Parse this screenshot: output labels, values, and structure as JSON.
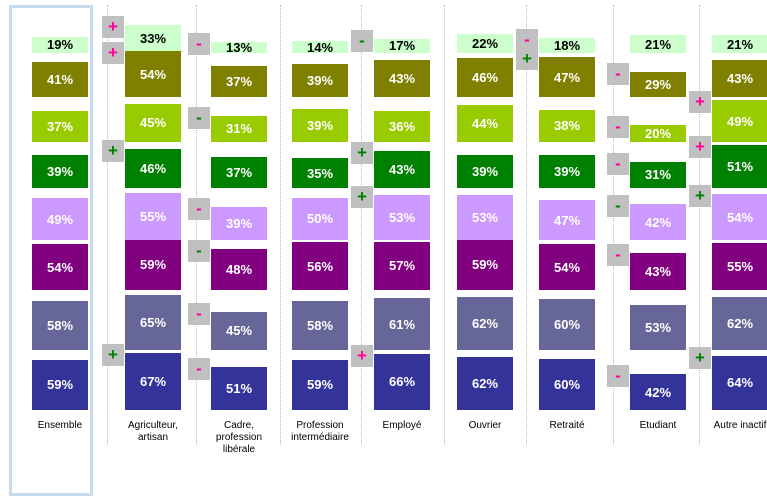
{
  "chart_data": {
    "type": "square-grid",
    "categories": [
      "Ensemble",
      "Agriculteur,\nartisan",
      "Cadre,\nprofession\nlibérale",
      "Profession\nintermédiaire",
      "Employé",
      "Ouvrier",
      "Retraité",
      "Etudiant",
      "Autre inactif"
    ],
    "highlight_color": "#c6dcec",
    "series": [
      {
        "color": "#ccffcc",
        "text_color": "#000000",
        "values": [
          19,
          33,
          13,
          14,
          17,
          22,
          18,
          21,
          21
        ],
        "value_labels": [
          "19%",
          "33%",
          "13%",
          "14%",
          "17%",
          "22%",
          "18%",
          "21%",
          "21%"
        ],
        "signs": [
          null,
          "+",
          "-",
          null,
          "-",
          null,
          "-",
          null,
          null
        ],
        "sign_colors": [
          null,
          "#ff0099",
          "#ff0099",
          null,
          "#008000",
          null,
          "#ff0099",
          null,
          null
        ]
      },
      {
        "color": "#808000",
        "text_color": "#ffffff",
        "values": [
          41,
          54,
          37,
          39,
          43,
          46,
          47,
          29,
          43
        ],
        "value_labels": [
          "41%",
          "54%",
          "37%",
          "39%",
          "43%",
          "46%",
          "47%",
          "29%",
          "43%"
        ],
        "signs": [
          null,
          "+",
          null,
          null,
          null,
          null,
          "+",
          "-",
          null
        ],
        "sign_colors": [
          null,
          "#ff0099",
          null,
          null,
          null,
          null,
          "#008000",
          "#ff0099",
          null
        ]
      },
      {
        "color": "#99cc00",
        "text_color": "#ffffff",
        "values": [
          37,
          45,
          31,
          39,
          36,
          44,
          38,
          20,
          49
        ],
        "value_labels": [
          "37%",
          "45%",
          "31%",
          "39%",
          "36%",
          "44%",
          "38%",
          "20%",
          "49%"
        ],
        "signs": [
          null,
          null,
          "-",
          null,
          null,
          null,
          null,
          "-",
          "+"
        ],
        "sign_colors": [
          null,
          null,
          "#008000",
          null,
          null,
          null,
          null,
          "#ff0099",
          "#ff0099"
        ]
      },
      {
        "color": "#008000",
        "text_color": "#ffffff",
        "values": [
          39,
          46,
          37,
          35,
          43,
          39,
          39,
          31,
          51
        ],
        "value_labels": [
          "39%",
          "46%",
          "37%",
          "35%",
          "43%",
          "39%",
          "39%",
          "31%",
          "51%"
        ],
        "signs": [
          null,
          "+",
          null,
          null,
          "+",
          null,
          null,
          "-",
          "+"
        ],
        "sign_colors": [
          null,
          "#008000",
          null,
          null,
          "#008000",
          null,
          null,
          "#ff0099",
          "#ff0099"
        ]
      },
      {
        "color": "#cc99ff",
        "text_color": "#ffffff",
        "values": [
          49,
          55,
          39,
          50,
          53,
          53,
          47,
          42,
          54
        ],
        "value_labels": [
          "49%",
          "55%",
          "39%",
          "50%",
          "53%",
          "53%",
          "47%",
          "42%",
          "54%"
        ],
        "signs": [
          null,
          null,
          "-",
          null,
          "+",
          null,
          null,
          "-",
          "+"
        ],
        "sign_colors": [
          null,
          null,
          "#ff0099",
          null,
          "#008000",
          null,
          null,
          "#008000",
          "#008000"
        ]
      },
      {
        "color": "#800080",
        "text_color": "#ffffff",
        "values": [
          54,
          59,
          48,
          56,
          57,
          59,
          54,
          43,
          55
        ],
        "value_labels": [
          "54%",
          "59%",
          "48%",
          "56%",
          "57%",
          "59%",
          "54%",
          "43%",
          "55%"
        ],
        "signs": [
          null,
          null,
          "-",
          null,
          null,
          null,
          null,
          "-",
          null
        ],
        "sign_colors": [
          null,
          null,
          "#008000",
          null,
          null,
          null,
          null,
          "#ff0099",
          null
        ]
      },
      {
        "color": "#666699",
        "text_color": "#ffffff",
        "values": [
          58,
          65,
          45,
          58,
          61,
          62,
          60,
          53,
          62
        ],
        "value_labels": [
          "58%",
          "65%",
          "45%",
          "58%",
          "61%",
          "62%",
          "60%",
          "53%",
          "62%"
        ],
        "signs": [
          null,
          null,
          "-",
          null,
          null,
          null,
          null,
          null,
          null
        ],
        "sign_colors": [
          null,
          null,
          "#ff0099",
          null,
          null,
          null,
          null,
          null,
          null
        ]
      },
      {
        "color": "#333399",
        "text_color": "#ffffff",
        "values": [
          59,
          67,
          51,
          59,
          66,
          62,
          60,
          42,
          64
        ],
        "value_labels": [
          "59%",
          "67%",
          "51%",
          "59%",
          "66%",
          "62%",
          "60%",
          "42%",
          "64%"
        ],
        "signs": [
          null,
          "+",
          "-",
          null,
          "+",
          null,
          null,
          "-",
          "+"
        ],
        "sign_colors": [
          null,
          "#008000",
          "#ff0099",
          null,
          "#ff0099",
          null,
          null,
          "#ff0099",
          "#008000"
        ]
      }
    ]
  }
}
